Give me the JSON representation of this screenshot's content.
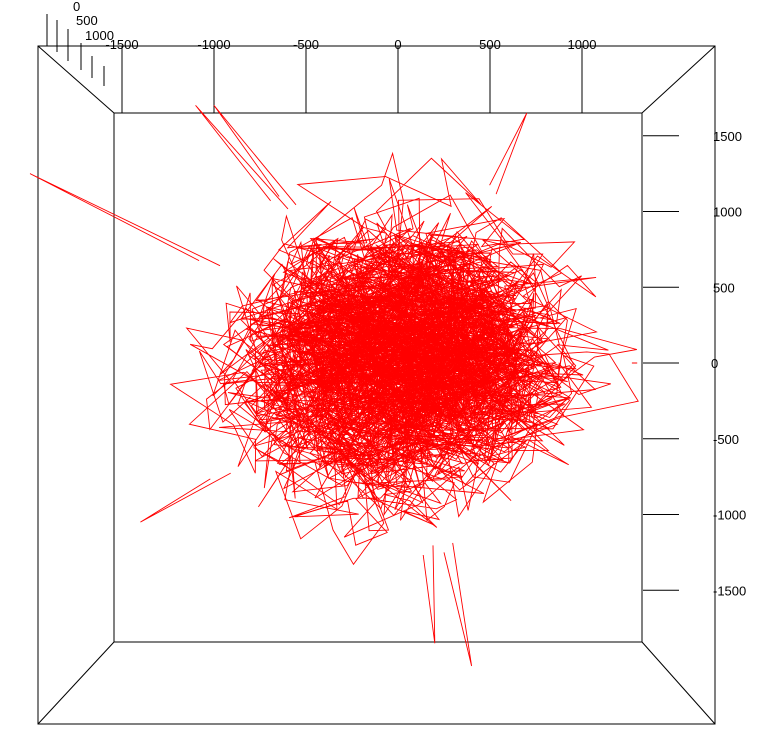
{
  "chart_data": {
    "type": "line",
    "view": "3d-box-top-down",
    "x_axis": {
      "ticks": [
        -1500,
        -1000,
        -500,
        0,
        500,
        1000
      ],
      "tick_labels": [
        "-1500",
        "-1000",
        "-500",
        "0",
        "500",
        "1000"
      ],
      "range": [
        -1500,
        1500
      ]
    },
    "y_axis": {
      "ticks": [
        1500,
        1000,
        500,
        0,
        -500,
        -1000,
        -1500
      ],
      "tick_labels": [
        "1500",
        "1000",
        "500",
        "0",
        "-500",
        "-1000",
        "-1500"
      ],
      "range": [
        -1700,
        1700
      ]
    },
    "z_axis": {
      "ticks": [
        0,
        500,
        1000
      ],
      "tick_labels": [
        "0",
        "500",
        "1000"
      ]
    },
    "series": [
      {
        "color": "#ff0000",
        "shape": "random walk path filling a sphere",
        "center": [
          0,
          0
        ],
        "radius": 1500,
        "segments": 3400,
        "outliers": [
          [
            -2000,
            1250
          ],
          [
            -1000,
            1700
          ],
          [
            -1100,
            1700
          ],
          [
            700,
            1650
          ],
          [
            1300,
            0
          ],
          [
            -1400,
            -1050
          ],
          [
            200,
            -1850
          ],
          [
            400,
            -2000
          ]
        ]
      }
    ],
    "colors": {
      "background": "#ffffff",
      "axes": "#000000",
      "data": "#ff0000"
    },
    "title": "",
    "xlabel": "",
    "ylabel": "",
    "zlabel": ""
  }
}
